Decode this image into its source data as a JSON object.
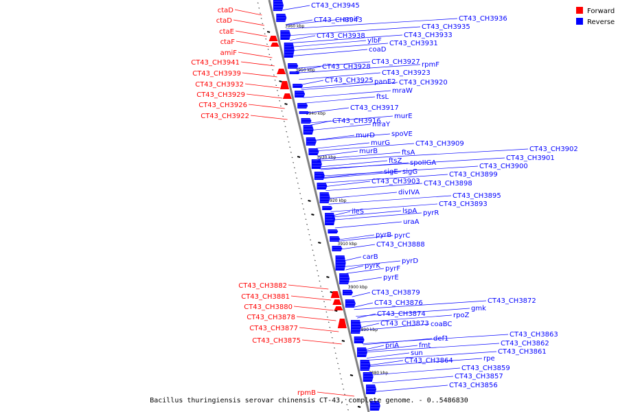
{
  "caption": "Bacillus thuringiensis serovar chinensis CT-43, complete genome. - 0..5486830",
  "legend": [
    {
      "label": "Forward",
      "color": "#ff0000"
    },
    {
      "label": "Reverse",
      "color": "#0000ff"
    }
  ],
  "colors": {
    "forward": "#ff0000",
    "reverse": "#0000ff",
    "backbone": "#808080"
  },
  "scale_labels": [
    "3960 kbp",
    "3950 kbp",
    "3940 kbp",
    "3930 kbp",
    "3920 kbp",
    "3910 kbp",
    "3900 kbp",
    "3890 kbp",
    "3880 kbp"
  ],
  "forward_genes": [
    "ctaD",
    "ctaD",
    "ctaE",
    "ctaF",
    "amiF",
    "CT43_CH3941",
    "CT43_CH3939",
    "CT43_CH3932",
    "CT43_CH3929",
    "CT43_CH3926",
    "CT43_CH3922",
    "CT43_CH3882",
    "CT43_CH3881",
    "CT43_CH3880",
    "CT43_CH3878",
    "CT43_CH3877",
    "CT43_CH3875",
    "rpmB"
  ],
  "reverse_genes": [
    "CT43_CH3945",
    "CT43_CH3943",
    "amiF",
    "CT43_CH3936",
    "CT43_CH3938",
    "CT43_CH3935",
    "CT43_CH3933",
    "ylbF",
    "CT43_CH3931",
    "coaD",
    "CT43_CH3927",
    "rpmF",
    "CT43_CH3928",
    "CT43_CH3923",
    "CT43_CH3925",
    "panE2",
    "CT43_CH3920",
    "mraW",
    "ftsL",
    "CT43_CH3917",
    "murE",
    "CT43_CH3916",
    "mraY",
    "murD",
    "spoVE",
    "murG",
    "CT43_CH3909",
    "murB",
    "ftsA",
    "CT43_CH3902",
    "CT43_CH3901",
    "ftsZ",
    "spoIIGA",
    "CT43_CH3900",
    "sigE",
    "sigG",
    "CT43_CH3899",
    "CT43_CH3903",
    "CT43_CH3898",
    "divIVA",
    "CT43_CH3895",
    "CT43_CH3893",
    "ileS",
    "lspA",
    "pyrR",
    "uraA",
    "pyrB",
    "pyrC",
    "CT43_CH3888",
    "carB",
    "pyrD",
    "pyrK",
    "pyrF",
    "pyrE",
    "CT43_CH3879",
    "CT43_CH3876",
    "CT43_CH3872",
    "gmk",
    "CT43_CH3874",
    "rpoZ",
    "CT43_CH3873",
    "coaBC",
    "CT43_CH3863",
    "def1",
    "priA",
    "fmt",
    "CT43_CH3862",
    "sun",
    "CT43_CH3861",
    "CT43_CH3864",
    "rpe",
    "CT43_CH3859",
    "CT43_CH3857",
    "CT43_CH3856"
  ]
}
